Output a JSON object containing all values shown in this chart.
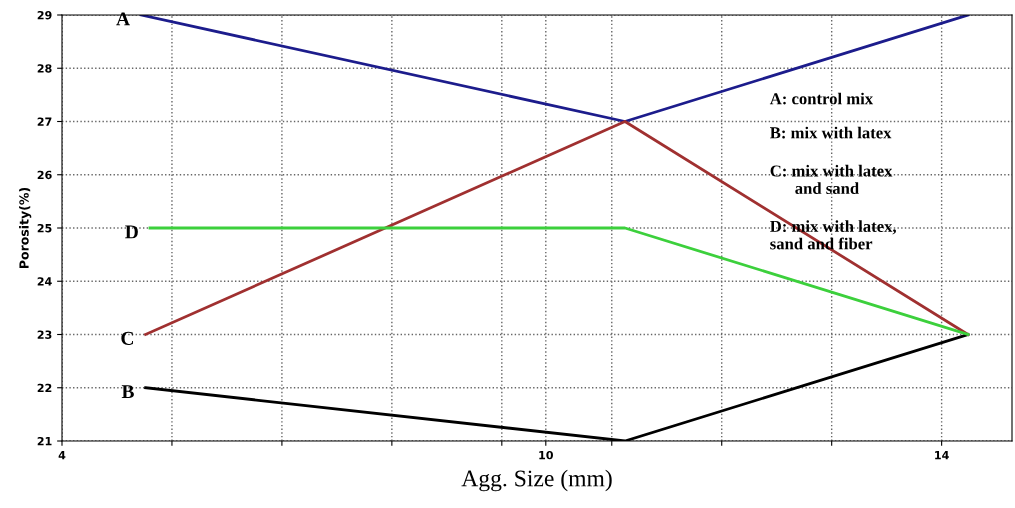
{
  "chart_data": {
    "type": "line",
    "xlabel": "Agg. Size (mm)",
    "ylabel": "Porosity(%)",
    "xlim": [
      4,
      14.8
    ],
    "ylim": [
      21,
      29
    ],
    "xticks": [
      {
        "value": 4,
        "label": "4"
      },
      {
        "value": 5.25,
        "label": null
      },
      {
        "value": 6.5,
        "label": null
      },
      {
        "value": 7.75,
        "label": null
      },
      {
        "value": 9,
        "label": null
      },
      {
        "value": 9.5,
        "label": "10"
      },
      {
        "value": 10.25,
        "label": null
      },
      {
        "value": 11.5,
        "label": null
      },
      {
        "value": 12.75,
        "label": null
      },
      {
        "value": 14,
        "label": "14"
      }
    ],
    "yticks": [
      21,
      22,
      23,
      24,
      25,
      26,
      27,
      28,
      29
    ],
    "grid": true,
    "line_style": "solid",
    "marker": "none",
    "series": [
      {
        "name": "A",
        "color": "#1c1c8c",
        "x": [
          4.9,
          10.4,
          14.3
        ],
        "values": [
          29,
          27,
          29
        ]
      },
      {
        "name": "B",
        "color": "#000000",
        "x": [
          4.95,
          10.4,
          14.3
        ],
        "values": [
          22,
          21,
          23
        ]
      },
      {
        "name": "C",
        "color": "#a03030",
        "x": [
          4.95,
          10.4,
          14.3
        ],
        "values": [
          23,
          27,
          23
        ]
      },
      {
        "name": "D",
        "color": "#3cd03c",
        "x": [
          5.0,
          10.4,
          14.3
        ],
        "values": [
          25,
          25,
          23
        ]
      }
    ],
    "annotations": [
      "A: control mix",
      "B: mix with latex",
      "C: mix with latex\n      and sand",
      "D: mix with latex,\nsand and fiber"
    ]
  }
}
